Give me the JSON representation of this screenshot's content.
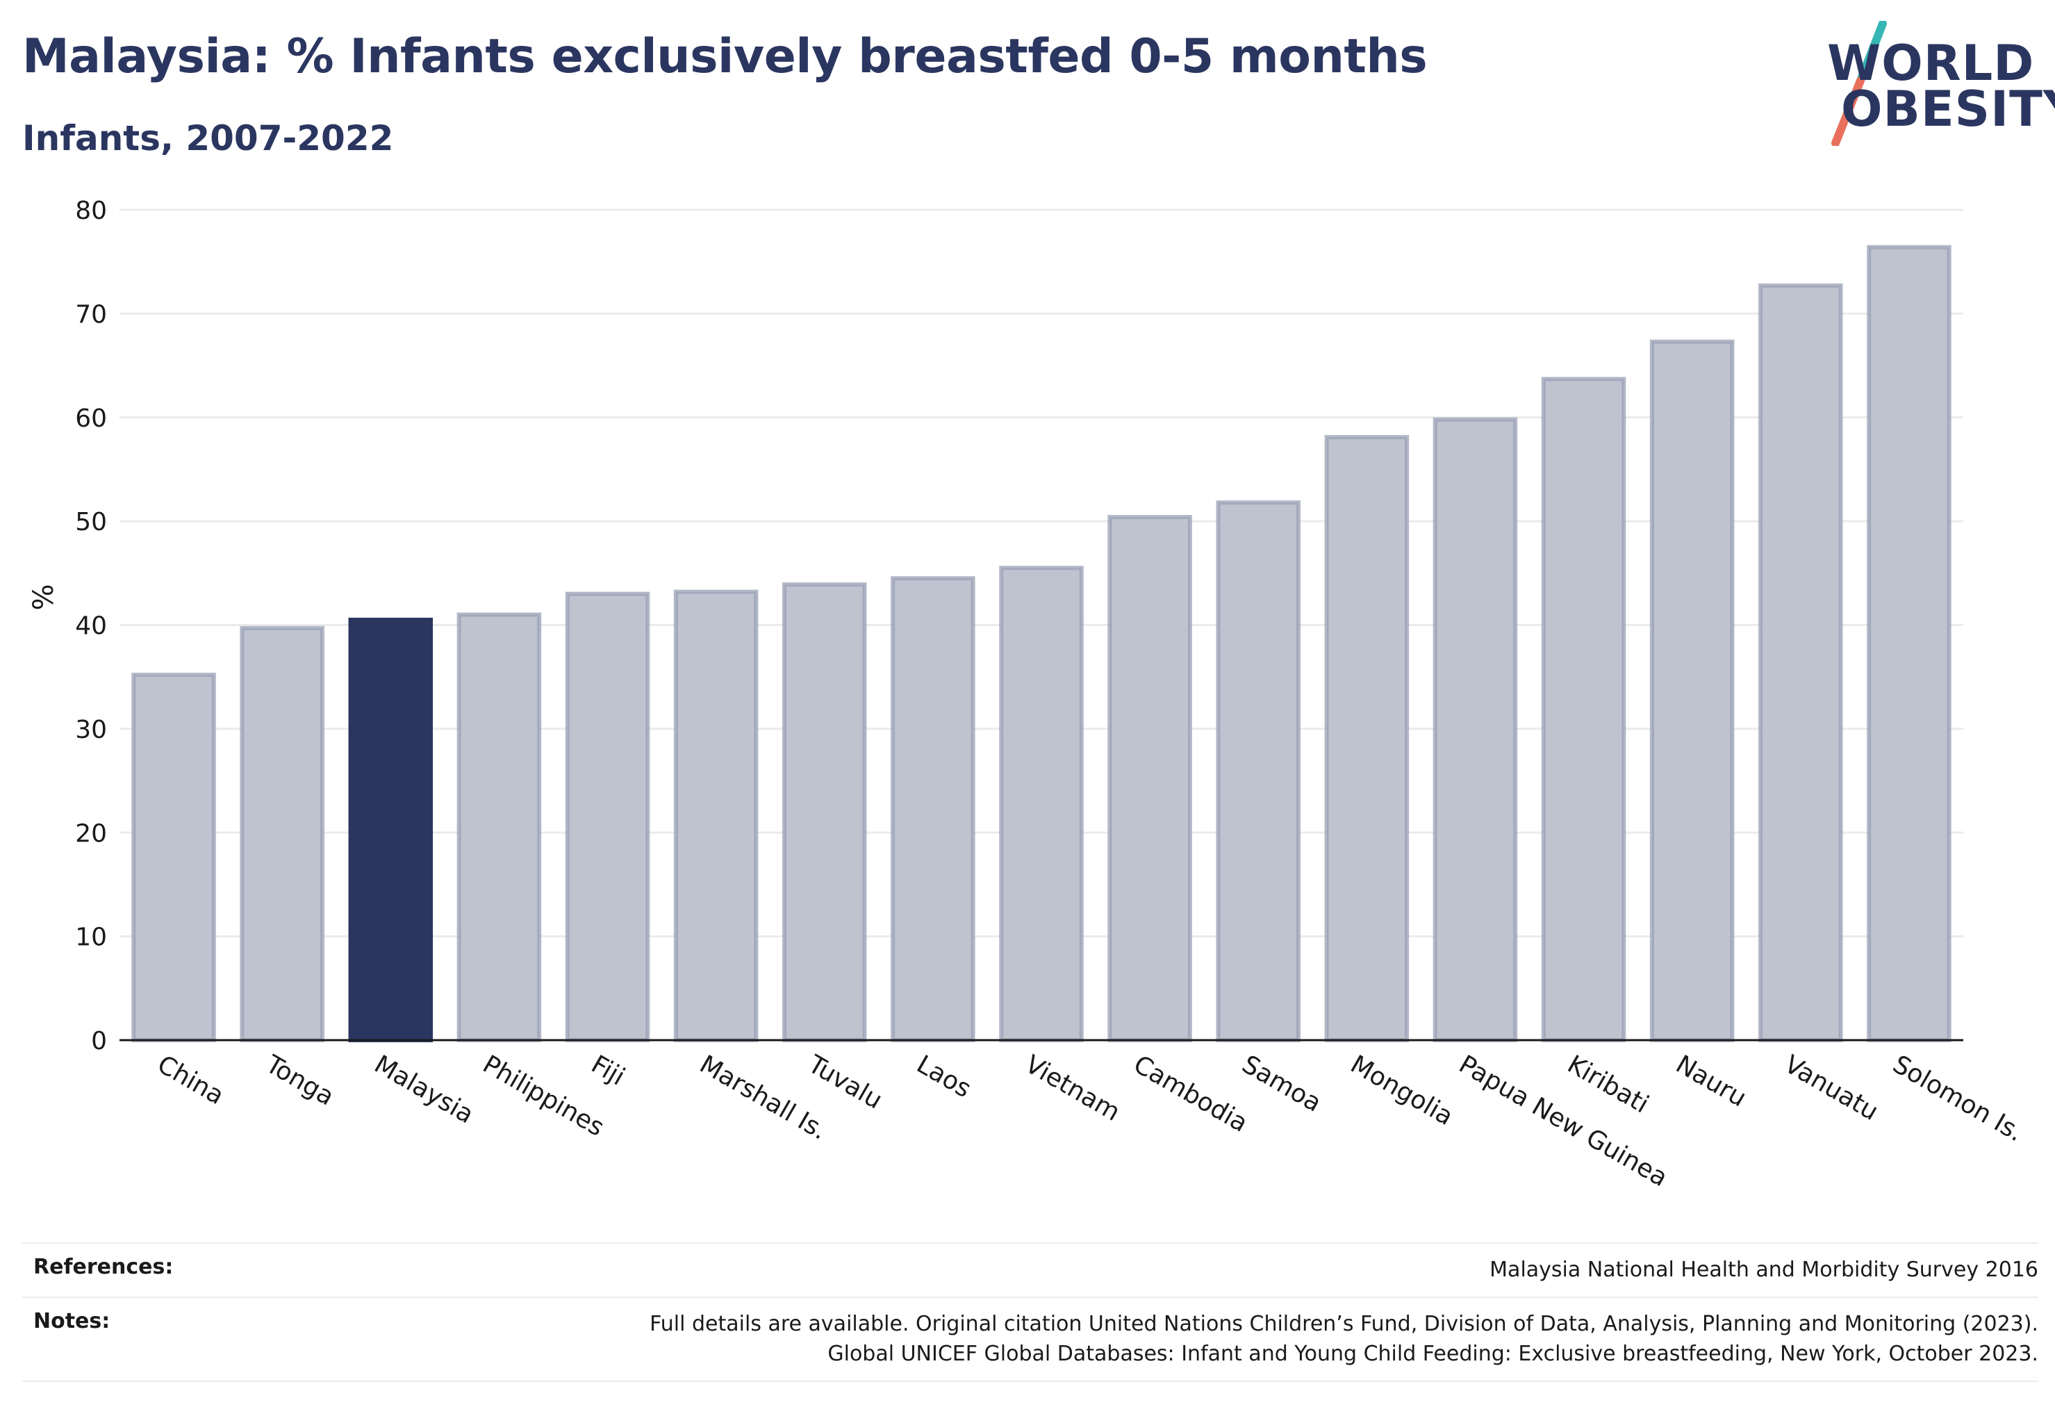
{
  "header": {
    "title": "Malaysia: % Infants exclusively breastfed 0-5 months",
    "subtitle": "Infants, 2007-2022"
  },
  "logo": {
    "line1": "WORLD",
    "line2": "OBESITY"
  },
  "colors": {
    "highlight": "#2b3660",
    "bar": "#bfc3d0",
    "bar_edge": "#9aa0b5",
    "slash_teal": "#36b6b4",
    "slash_red": "#e8705c"
  },
  "chart_data": {
    "type": "bar",
    "ylabel": "%",
    "ylim": [
      0,
      80
    ],
    "yticks": [
      0,
      10,
      20,
      30,
      40,
      50,
      60,
      70,
      80
    ],
    "grid": true,
    "highlight": "Malaysia",
    "categories": [
      "China",
      "Tonga",
      "Malaysia",
      "Philippines",
      "Fiji",
      "Marshall Is.",
      "Tuvalu",
      "Laos",
      "Vietnam",
      "Cambodia",
      "Samoa",
      "Mongolia",
      "Papua New Guinea",
      "Kiribati",
      "Nauru",
      "Vanuatu",
      "Solomon Is."
    ],
    "values": [
      35.2,
      39.7,
      40.5,
      41.0,
      43.0,
      43.2,
      43.9,
      44.5,
      45.5,
      50.4,
      51.8,
      58.1,
      59.8,
      63.7,
      67.3,
      72.7,
      76.4
    ]
  },
  "footer": {
    "references_label": "References:",
    "references_text": "Malaysia National Health and Morbidity Survey 2016",
    "notes_label": "Notes:",
    "notes_line1": "Full details are available. Original citation United Nations Children’s Fund, Division of Data, Analysis, Planning and Monitoring (2023).",
    "notes_line2": "Global UNICEF Global Databases: Infant and Young Child Feeding: Exclusive breastfeeding, New York, October 2023."
  }
}
